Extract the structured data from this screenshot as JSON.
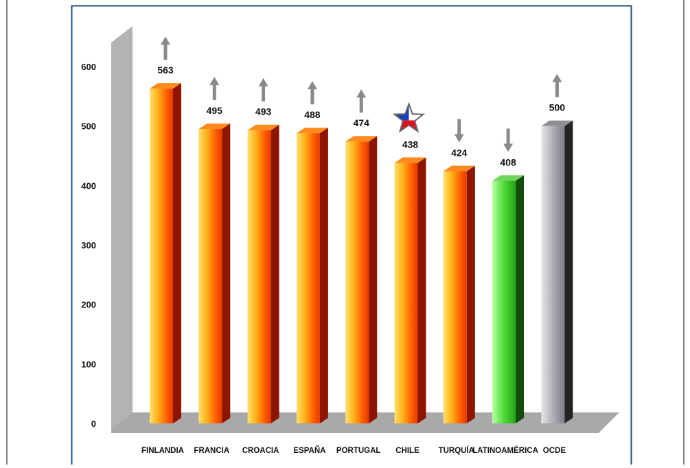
{
  "chart_data": {
    "type": "bar",
    "categories": [
      "FINLANDIA",
      "FRANCIA",
      "CROACIA",
      "ESPAÑA",
      "PORTUGAL",
      "CHILE",
      "TURQUÍA",
      "LATINOAMÉRICA",
      "OCDE"
    ],
    "values": [
      563,
      495,
      493,
      488,
      474,
      438,
      424,
      408,
      500
    ],
    "value_labels": [
      "563",
      "495",
      "493",
      "488",
      "474",
      "438",
      "424",
      "408",
      "500"
    ],
    "markers": [
      "arrow-up",
      "arrow-up",
      "arrow-up",
      "arrow-up",
      "arrow-up",
      "chile-flag-star",
      "arrow-down",
      "arrow-down",
      "arrow-up"
    ],
    "bar_styles": [
      "orange",
      "orange",
      "orange",
      "orange",
      "orange",
      "orange",
      "orange",
      "green",
      "gray"
    ],
    "y_ticks": [
      0,
      100,
      200,
      300,
      400,
      500,
      600
    ],
    "y_tick_labels": [
      "0",
      "100",
      "200",
      "300",
      "400",
      "500",
      "600"
    ],
    "ylim": [
      0,
      600
    ],
    "grid": false,
    "legend": "none",
    "title": "",
    "xlabel": "",
    "ylabel": ""
  },
  "colors": {
    "frame_border": "#1f4e79",
    "wall": "#b3b3b3",
    "floor": "#a9a9a9",
    "text": "#111111",
    "arrow": "#8a8a8a"
  }
}
